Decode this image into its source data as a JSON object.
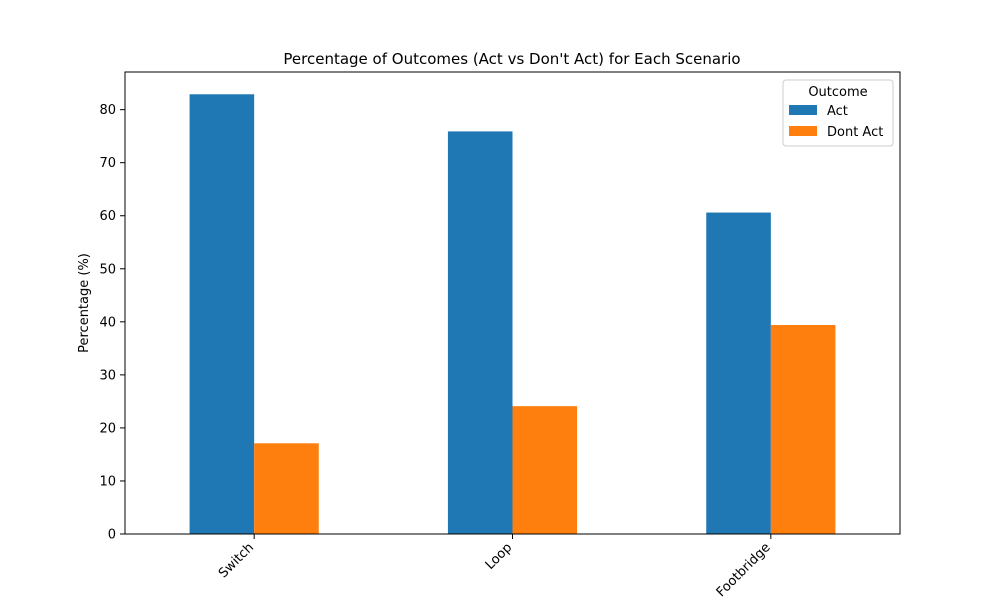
{
  "chart_data": {
    "type": "bar",
    "title": "Percentage of Outcomes (Act vs Don't Act) for Each Scenario",
    "xlabel": "",
    "ylabel": "Percentage (%)",
    "categories": [
      "Switch",
      "Loop",
      "Footbridge"
    ],
    "series": [
      {
        "name": "Act",
        "values": [
          82.9,
          75.9,
          60.6
        ],
        "color": "#1f77b4"
      },
      {
        "name": "Dont Act",
        "values": [
          17.1,
          24.1,
          39.4
        ],
        "color": "#ff7f0e"
      }
    ],
    "ylim": [
      0,
      87.1
    ],
    "yticks": [
      0,
      10,
      20,
      30,
      40,
      50,
      60,
      70,
      80
    ],
    "grid": false,
    "legend": {
      "title": "Outcome",
      "placement": "top-right"
    },
    "xtick_rotation": 45
  }
}
